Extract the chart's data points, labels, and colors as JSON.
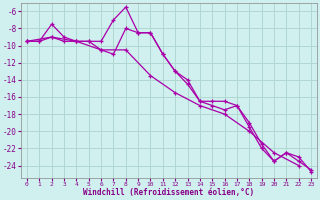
{
  "xlabel": "Windchill (Refroidissement éolien,°C)",
  "background_color": "#cff0ee",
  "grid_color": "#b0d8d0",
  "line_color": "#aa00aa",
  "xlim": [
    -0.5,
    23.5
  ],
  "ylim": [
    -25.5,
    -5.0
  ],
  "yticks": [
    -24,
    -22,
    -20,
    -18,
    -16,
    -14,
    -12,
    -10,
    -8,
    -6
  ],
  "xticks": [
    0,
    1,
    2,
    3,
    4,
    5,
    6,
    7,
    8,
    9,
    10,
    11,
    12,
    13,
    14,
    15,
    16,
    17,
    18,
    19,
    20,
    21,
    22,
    23
  ],
  "line1_x": [
    0,
    1,
    2,
    3,
    4,
    5,
    6,
    7,
    8,
    9,
    10,
    11,
    12,
    13,
    14,
    15,
    16,
    17,
    18,
    19,
    20,
    21,
    22,
    23
  ],
  "line1_y": [
    -9.5,
    -9.5,
    -7.5,
    -9.0,
    -9.5,
    -9.5,
    -9.5,
    -7.0,
    -5.5,
    -8.5,
    -8.5,
    -11.0,
    -13.0,
    -14.0,
    -16.5,
    -16.5,
    -16.5,
    -17.0,
    -19.0,
    -21.5,
    -23.5,
    -22.5,
    -23.5,
    -24.5
  ],
  "line2_x": [
    0,
    1,
    2,
    3,
    4,
    5,
    6,
    7,
    8,
    9,
    10,
    11,
    12,
    13,
    14,
    15,
    16,
    17,
    18,
    19,
    20,
    21,
    22,
    23
  ],
  "line2_y": [
    -9.5,
    -9.5,
    -9.0,
    -9.5,
    -9.5,
    -9.5,
    -10.5,
    -11.0,
    -8.0,
    -8.5,
    -8.5,
    -11.0,
    -13.0,
    -14.5,
    -16.5,
    -17.0,
    -17.5,
    -17.0,
    -19.5,
    -22.0,
    -23.5,
    -22.5,
    -23.0,
    -24.7
  ],
  "line3_x": [
    0,
    2,
    4,
    6,
    8,
    10,
    12,
    14,
    16,
    18,
    20,
    22
  ],
  "line3_y": [
    -9.5,
    -9.0,
    -9.5,
    -10.5,
    -10.5,
    -13.5,
    -15.5,
    -17.0,
    -18.0,
    -20.0,
    -22.5,
    -24.0
  ]
}
